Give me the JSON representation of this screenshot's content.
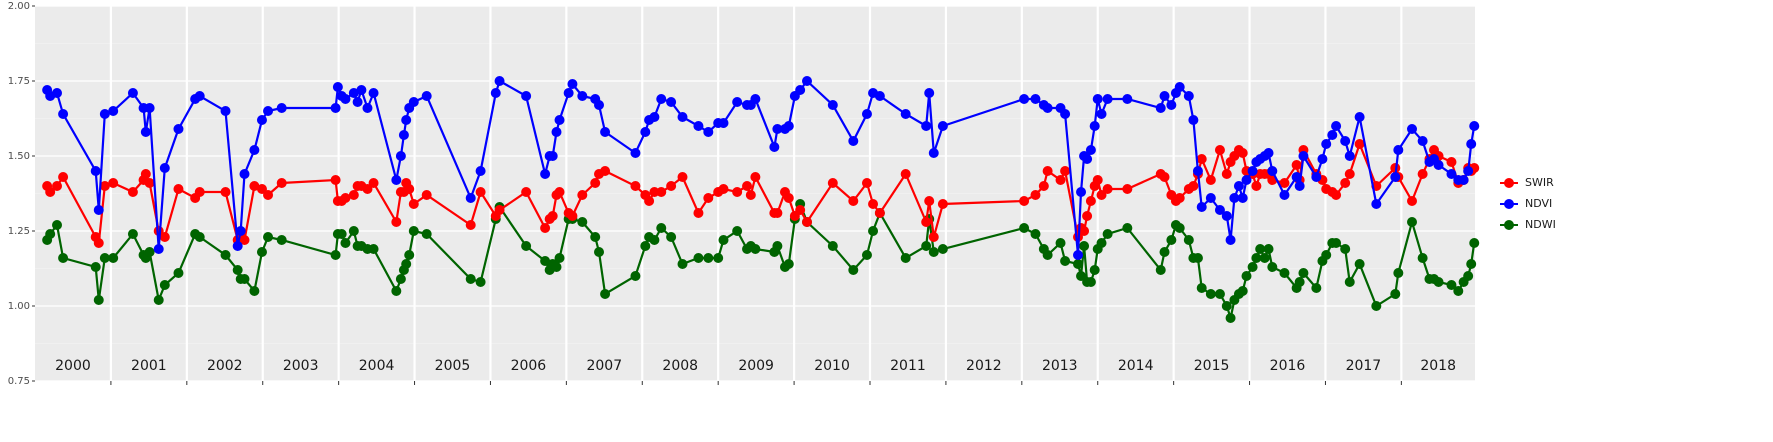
{
  "chart_data": {
    "type": "line",
    "x": [
      2000.16,
      2000.2,
      2000.29,
      2000.37,
      2000.8,
      2000.84,
      2000.92,
      2001.03,
      2001.29,
      2001.43,
      2001.46,
      2001.51,
      2001.63,
      2001.71,
      2001.89,
      2002.11,
      2002.17,
      2002.51,
      2002.67,
      2002.71,
      2002.76,
      2002.89,
      2002.99,
      2003.07,
      2003.25,
      2003.96,
      2003.99,
      2004.04,
      2004.09,
      2004.2,
      2004.25,
      2004.3,
      2004.38,
      2004.46,
      2004.76,
      2004.82,
      2004.86,
      2004.89,
      2004.93,
      2004.99,
      2005.16,
      2005.74,
      2005.87,
      2006.07,
      2006.12,
      2006.47,
      2006.72,
      2006.78,
      2006.82,
      2006.87,
      2006.91,
      2007.03,
      2007.08,
      2007.21,
      2007.38,
      2007.43,
      2007.51,
      2007.91,
      2008.04,
      2008.09,
      2008.16,
      2008.25,
      2008.38,
      2008.53,
      2008.74,
      2008.87,
      2009.0,
      2009.07,
      2009.25,
      2009.38,
      2009.43,
      2009.49,
      2009.74,
      2009.78,
      2009.88,
      2009.93,
      2010.01,
      2010.08,
      2010.17,
      2010.51,
      2010.78,
      2010.96,
      2011.04,
      2011.13,
      2011.47,
      2011.74,
      2011.78,
      2011.84,
      2011.96,
      2013.03,
      2013.18,
      2013.29,
      2013.34,
      2013.51,
      2013.57,
      2013.74,
      2013.78,
      2013.82,
      2013.86,
      2013.91,
      2013.96,
      2014.0,
      2014.05,
      2014.13,
      2014.39,
      2014.83,
      2014.88,
      2014.97,
      2015.03,
      2015.08,
      2015.2,
      2015.26,
      2015.32,
      2015.37,
      2015.49,
      2015.61,
      2015.7,
      2015.75,
      2015.8,
      2015.86,
      2015.91,
      2015.96,
      2016.04,
      2016.09,
      2016.14,
      2016.2,
      2016.25,
      2016.3,
      2016.46,
      2016.62,
      2016.66,
      2016.71,
      2016.88,
      2016.96,
      2017.01,
      2017.09,
      2017.14,
      2017.26,
      2017.32,
      2017.45,
      2017.67,
      2017.92,
      2017.96,
      2018.14,
      2018.28,
      2018.37,
      2018.43,
      2018.49,
      2018.66,
      2018.75,
      2018.82,
      2018.88,
      2018.92,
      2018.96
    ],
    "series": [
      {
        "name": "SWIR",
        "color": "#ff0000",
        "values": [
          1.4,
          1.38,
          1.4,
          1.43,
          1.23,
          1.21,
          1.4,
          1.41,
          1.38,
          1.42,
          1.44,
          1.41,
          1.25,
          1.23,
          1.39,
          1.36,
          1.38,
          1.38,
          1.22,
          1.24,
          1.22,
          1.4,
          1.39,
          1.37,
          1.41,
          1.42,
          1.35,
          1.35,
          1.36,
          1.37,
          1.4,
          1.4,
          1.39,
          1.41,
          1.28,
          1.38,
          1.38,
          1.41,
          1.39,
          1.34,
          1.37,
          1.27,
          1.38,
          1.3,
          1.32,
          1.38,
          1.26,
          1.29,
          1.3,
          1.37,
          1.38,
          1.31,
          1.3,
          1.37,
          1.41,
          1.44,
          1.45,
          1.4,
          1.37,
          1.35,
          1.38,
          1.38,
          1.4,
          1.43,
          1.31,
          1.36,
          1.38,
          1.39,
          1.38,
          1.4,
          1.37,
          1.43,
          1.31,
          1.31,
          1.38,
          1.36,
          1.3,
          1.32,
          1.28,
          1.41,
          1.35,
          1.41,
          1.34,
          1.31,
          1.44,
          1.28,
          1.35,
          1.23,
          1.34,
          1.35,
          1.37,
          1.4,
          1.45,
          1.42,
          1.45,
          1.23,
          1.26,
          1.25,
          1.3,
          1.35,
          1.4,
          1.42,
          1.37,
          1.39,
          1.39,
          1.44,
          1.43,
          1.37,
          1.35,
          1.36,
          1.39,
          1.4,
          1.44,
          1.49,
          1.42,
          1.52,
          1.44,
          1.48,
          1.5,
          1.52,
          1.51,
          1.45,
          1.44,
          1.4,
          1.44,
          1.44,
          1.44,
          1.42,
          1.41,
          1.47,
          1.42,
          1.52,
          1.44,
          1.42,
          1.39,
          1.38,
          1.37,
          1.41,
          1.44,
          1.54,
          1.4,
          1.46,
          1.43,
          1.35,
          1.44,
          1.49,
          1.52,
          1.5,
          1.48,
          1.41,
          1.42,
          1.46,
          1.45,
          1.46
        ]
      },
      {
        "name": "NDVI",
        "color": "#0000ff",
        "values": [
          1.72,
          1.7,
          1.71,
          1.64,
          1.45,
          1.32,
          1.64,
          1.65,
          1.71,
          1.66,
          1.58,
          1.66,
          1.19,
          1.46,
          1.59,
          1.69,
          1.7,
          1.65,
          1.2,
          1.25,
          1.44,
          1.52,
          1.62,
          1.65,
          1.66,
          1.66,
          1.73,
          1.7,
          1.69,
          1.71,
          1.68,
          1.72,
          1.66,
          1.71,
          1.42,
          1.5,
          1.57,
          1.62,
          1.66,
          1.68,
          1.7,
          1.36,
          1.45,
          1.71,
          1.75,
          1.7,
          1.44,
          1.5,
          1.5,
          1.58,
          1.62,
          1.71,
          1.74,
          1.7,
          1.69,
          1.67,
          1.58,
          1.51,
          1.58,
          1.62,
          1.63,
          1.69,
          1.68,
          1.63,
          1.6,
          1.58,
          1.61,
          1.61,
          1.68,
          1.67,
          1.67,
          1.69,
          1.53,
          1.59,
          1.59,
          1.6,
          1.7,
          1.72,
          1.75,
          1.67,
          1.55,
          1.64,
          1.71,
          1.7,
          1.64,
          1.6,
          1.71,
          1.51,
          1.6,
          1.69,
          1.69,
          1.67,
          1.66,
          1.66,
          1.64,
          1.17,
          1.38,
          1.5,
          1.49,
          1.52,
          1.6,
          1.69,
          1.64,
          1.69,
          1.69,
          1.66,
          1.7,
          1.67,
          1.71,
          1.73,
          1.7,
          1.62,
          1.45,
          1.33,
          1.36,
          1.32,
          1.3,
          1.22,
          1.36,
          1.4,
          1.36,
          1.42,
          1.45,
          1.48,
          1.49,
          1.5,
          1.51,
          1.45,
          1.37,
          1.43,
          1.4,
          1.5,
          1.43,
          1.49,
          1.54,
          1.57,
          1.6,
          1.55,
          1.5,
          1.63,
          1.34,
          1.43,
          1.52,
          1.59,
          1.55,
          1.48,
          1.49,
          1.47,
          1.44,
          1.42,
          1.42,
          1.45,
          1.54,
          1.6
        ]
      },
      {
        "name": "NDWI",
        "color": "#006400",
        "values": [
          1.22,
          1.24,
          1.27,
          1.16,
          1.13,
          1.02,
          1.16,
          1.16,
          1.24,
          1.17,
          1.16,
          1.18,
          1.02,
          1.07,
          1.11,
          1.24,
          1.23,
          1.17,
          1.12,
          1.09,
          1.09,
          1.05,
          1.18,
          1.23,
          1.22,
          1.17,
          1.24,
          1.24,
          1.21,
          1.25,
          1.2,
          1.2,
          1.19,
          1.19,
          1.05,
          1.09,
          1.12,
          1.14,
          1.17,
          1.25,
          1.24,
          1.09,
          1.08,
          1.29,
          1.33,
          1.2,
          1.15,
          1.12,
          1.14,
          1.13,
          1.16,
          1.29,
          1.29,
          1.28,
          1.23,
          1.18,
          1.04,
          1.1,
          1.2,
          1.23,
          1.22,
          1.26,
          1.23,
          1.14,
          1.16,
          1.16,
          1.16,
          1.22,
          1.25,
          1.19,
          1.2,
          1.19,
          1.18,
          1.2,
          1.13,
          1.14,
          1.29,
          1.34,
          1.28,
          1.2,
          1.12,
          1.17,
          1.25,
          1.31,
          1.16,
          1.2,
          1.29,
          1.18,
          1.19,
          1.26,
          1.24,
          1.19,
          1.17,
          1.21,
          1.15,
          1.14,
          1.1,
          1.2,
          1.08,
          1.08,
          1.12,
          1.19,
          1.21,
          1.24,
          1.26,
          1.12,
          1.18,
          1.22,
          1.27,
          1.26,
          1.22,
          1.16,
          1.16,
          1.06,
          1.04,
          1.04,
          1.0,
          0.96,
          1.02,
          1.04,
          1.05,
          1.1,
          1.13,
          1.16,
          1.19,
          1.16,
          1.19,
          1.13,
          1.11,
          1.06,
          1.08,
          1.11,
          1.06,
          1.15,
          1.17,
          1.21,
          1.21,
          1.19,
          1.08,
          1.14,
          1.0,
          1.04,
          1.11,
          1.28,
          1.16,
          1.09,
          1.09,
          1.08,
          1.07,
          1.05,
          1.08,
          1.1,
          1.14,
          1.21
        ]
      }
    ],
    "xlim": [
      2000,
      2018.97
    ],
    "xticks": [
      2001,
      2002,
      2003,
      2004,
      2005,
      2006,
      2007,
      2008,
      2009,
      2010,
      2011,
      2012,
      2013,
      2014,
      2015,
      2016,
      2017,
      2018
    ],
    "year_labels": [
      "2000",
      "2001",
      "2002",
      "2003",
      "2004",
      "2005",
      "2006",
      "2007",
      "2008",
      "2009",
      "2010",
      "2011",
      "2012",
      "2013",
      "2014",
      "2015",
      "2016",
      "2017",
      "2018"
    ],
    "ylim": [
      0.75,
      2
    ],
    "yticks": [
      0.75,
      {
        "value": 1,
        "label": "1.00"
      },
      1.25,
      {
        "value": 1.5,
        "label": "1.50"
      },
      1.75,
      {
        "value": 2,
        "label": "2.00"
      }
    ],
    "grid": true
  }
}
